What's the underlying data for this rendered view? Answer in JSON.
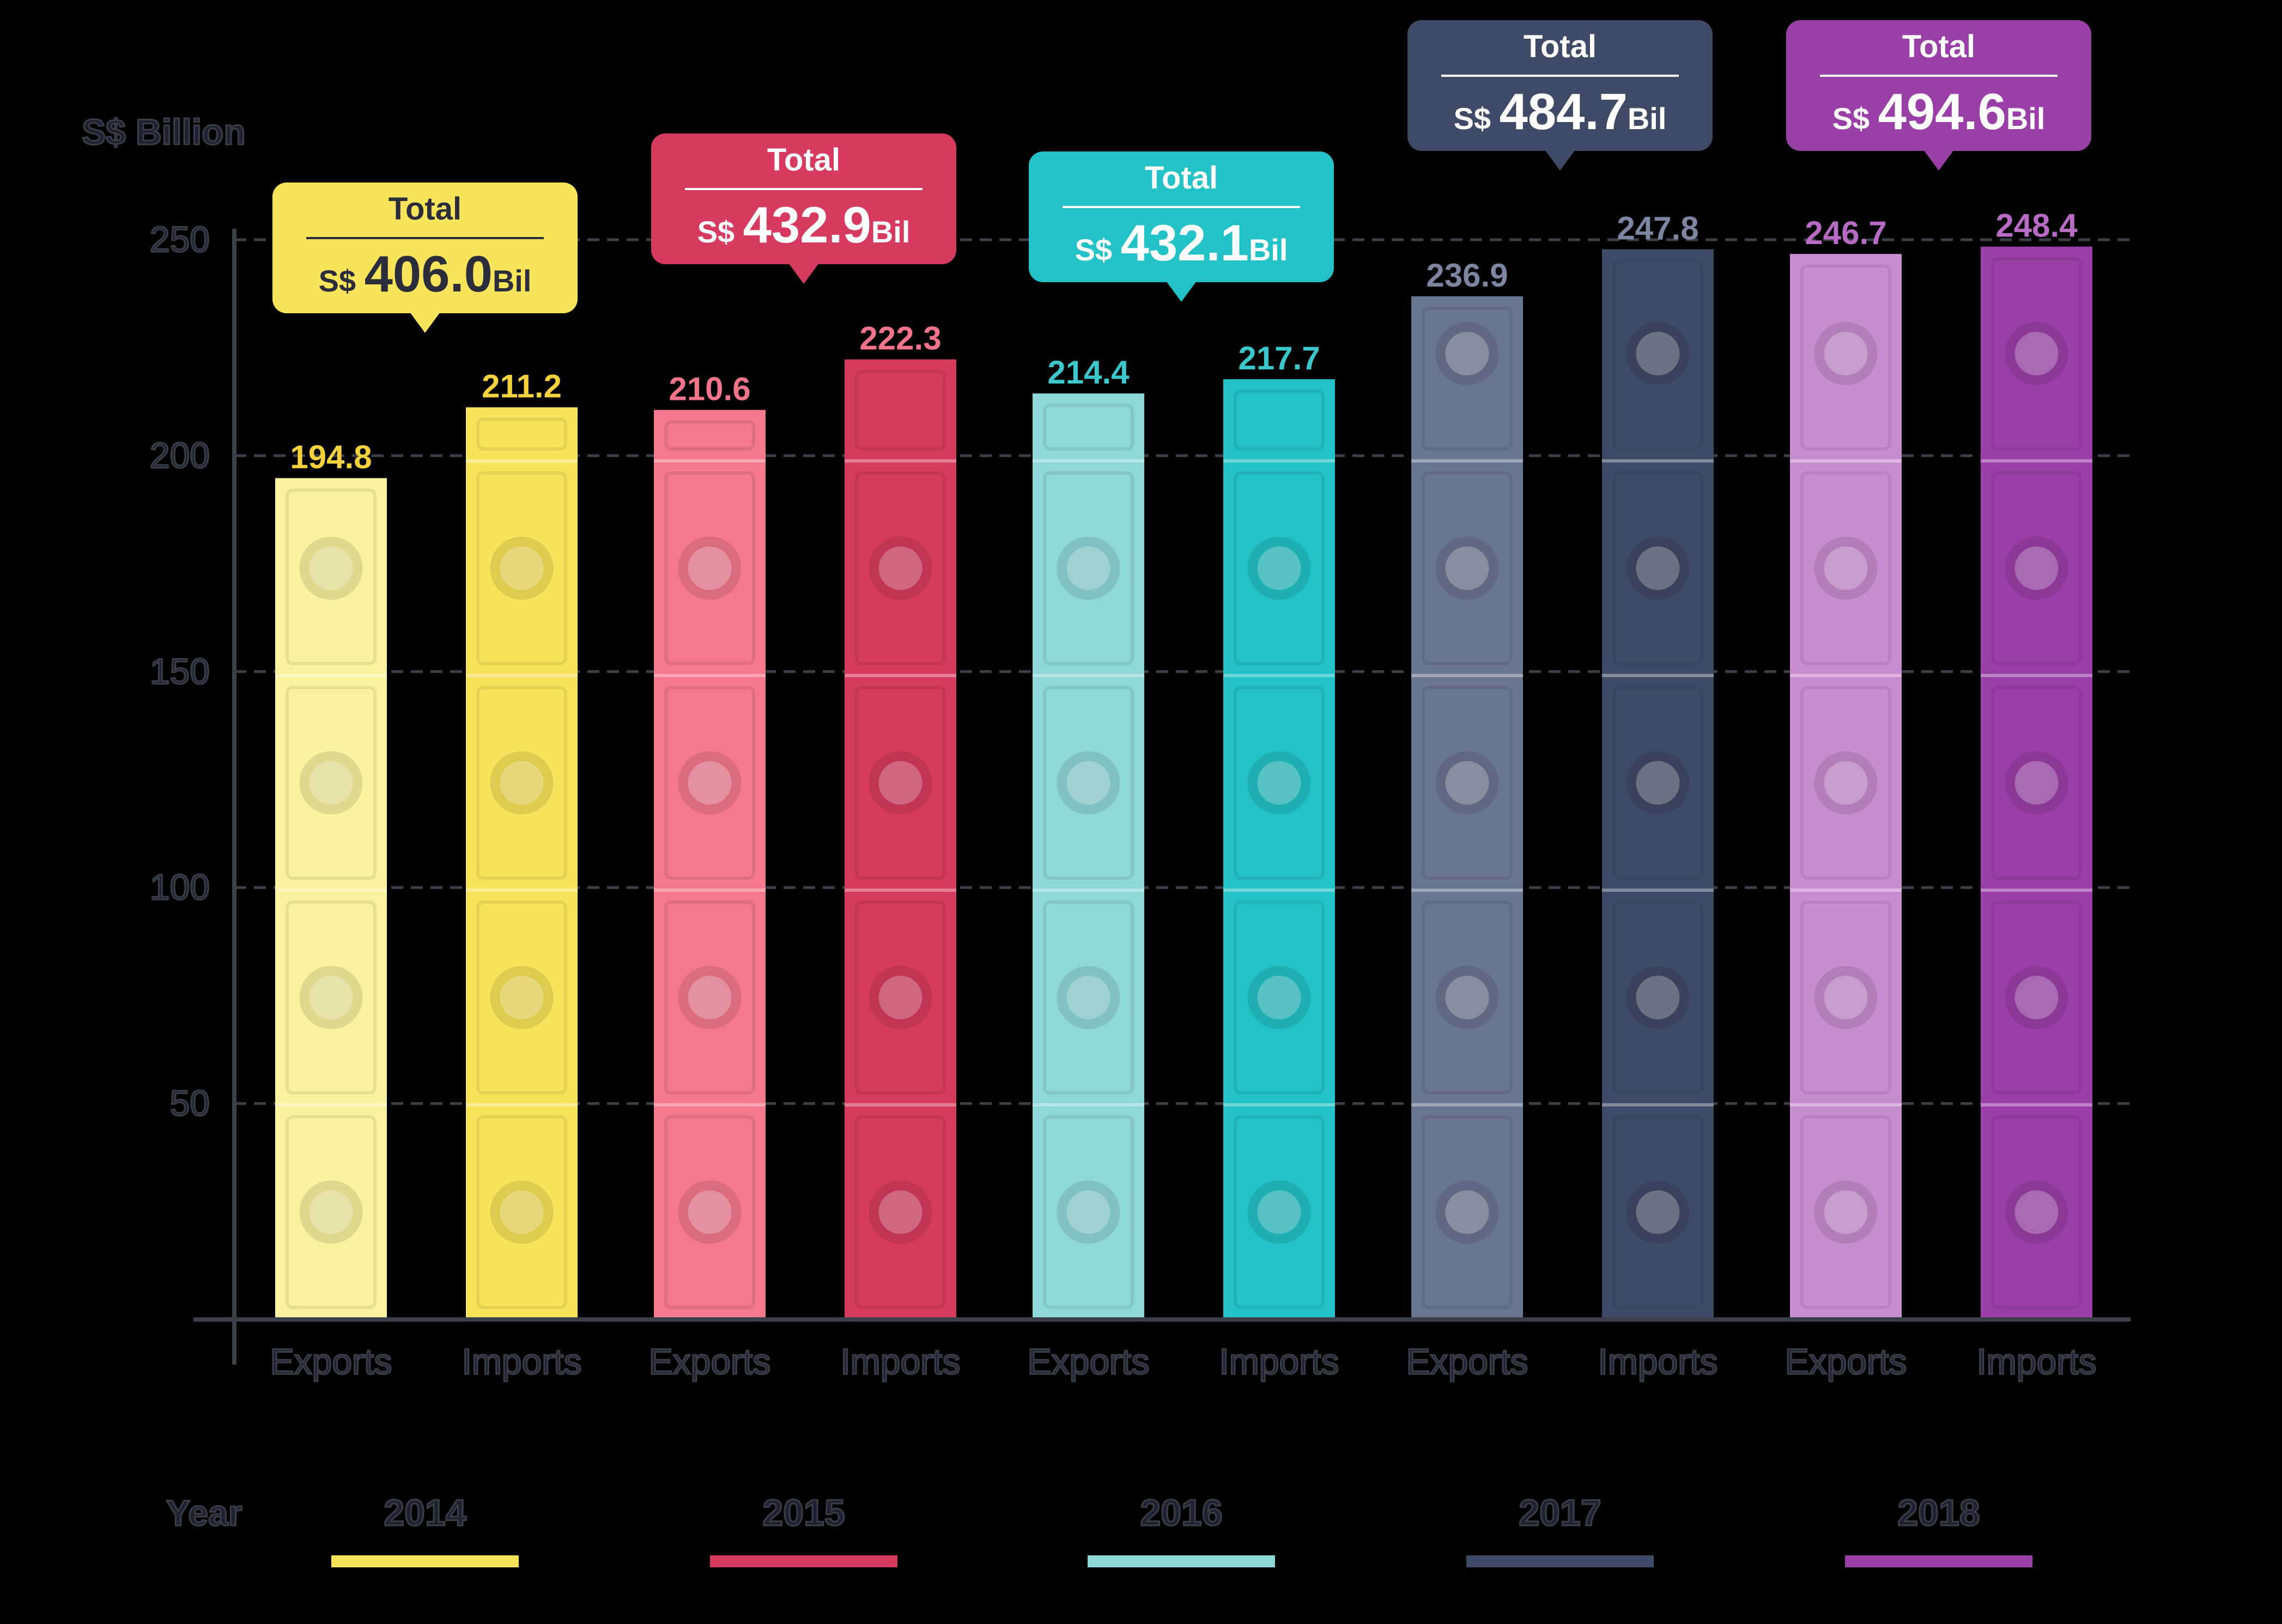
{
  "chart_data": {
    "type": "bar",
    "ylabel": "S$ Billion",
    "ylim": [
      0,
      250
    ],
    "yticks": [
      50,
      100,
      150,
      200,
      250
    ],
    "grid": true,
    "categories": [
      "Exports",
      "Imports",
      "Exports",
      "Imports",
      "Exports",
      "Imports",
      "Exports",
      "Imports",
      "Exports",
      "Imports"
    ],
    "values": [
      194.8,
      211.2,
      210.6,
      222.3,
      214.4,
      217.7,
      236.9,
      247.8,
      246.7,
      248.4
    ],
    "value_labels": [
      "194.8",
      "211.2",
      "210.6",
      "222.3",
      "214.4",
      "217.7",
      "236.9",
      "247.8",
      "246.7",
      "248.4"
    ],
    "groups": [
      {
        "year": "2014",
        "color": "#F8E45A",
        "light": "#F9F29E",
        "label_color": "#F3D23E",
        "total": {
          "title": "Total",
          "prefix": "S$",
          "value": "406.0",
          "unit": "Bil"
        }
      },
      {
        "year": "2015",
        "color": "#D63A5E",
        "light": "#F4788E",
        "label_color": "#F1748A",
        "total": {
          "title": "Total",
          "prefix": "S$",
          "value": "432.9",
          "unit": "Bil"
        }
      },
      {
        "year": "2016",
        "color": "#23C2C6",
        "light": "#8FD8DA",
        "label_color": "#3CC7CC",
        "total": {
          "title": "Total",
          "prefix": "S$",
          "value": "432.1",
          "unit": "Bil"
        }
      },
      {
        "year": "2017",
        "color": "#3F4B66",
        "light": "#6A7590",
        "label_color": "#7C86A0",
        "total": {
          "title": "Total",
          "prefix": "S$",
          "value": "484.7",
          "unit": "Bil"
        }
      },
      {
        "year": "2018",
        "color": "#9B3FA8",
        "light": "#C88CD0",
        "label_color": "#B86BC4",
        "total": {
          "title": "Total",
          "prefix": "S$",
          "value": "494.6",
          "unit": "Bil"
        }
      }
    ],
    "legend": {
      "title": "Year",
      "position": "bottom"
    }
  }
}
